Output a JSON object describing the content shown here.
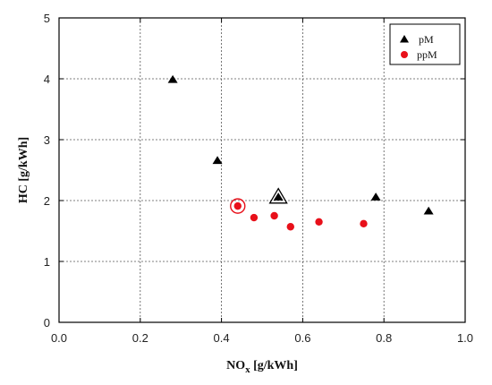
{
  "chart_data": {
    "type": "scatter",
    "xlabel": "NO",
    "xlabel_sub": "x",
    "xlabel_unit": " [g/kWh]",
    "ylabel": "HC [g/kWh]",
    "xlim": [
      0.0,
      1.0
    ],
    "ylim": [
      0,
      5
    ],
    "x_ticks": [
      "0.0",
      "0.2",
      "0.4",
      "0.6",
      "0.8",
      "1.0"
    ],
    "y_ticks": [
      "0",
      "1",
      "2",
      "3",
      "4",
      "5"
    ],
    "grid": "dotted",
    "legend_position": "top-right",
    "series": [
      {
        "name": "pM",
        "marker": "triangle",
        "color": "#000000",
        "points": [
          {
            "x": 0.28,
            "y": 3.98
          },
          {
            "x": 0.39,
            "y": 2.65
          },
          {
            "x": 0.54,
            "y": 2.05,
            "highlight": true
          },
          {
            "x": 0.78,
            "y": 2.05
          },
          {
            "x": 0.91,
            "y": 1.82
          }
        ]
      },
      {
        "name": "ppM",
        "marker": "circle",
        "color": "#e8101a",
        "points": [
          {
            "x": 0.44,
            "y": 1.91,
            "highlight": true
          },
          {
            "x": 0.48,
            "y": 1.72
          },
          {
            "x": 0.53,
            "y": 1.75
          },
          {
            "x": 0.57,
            "y": 1.57
          },
          {
            "x": 0.64,
            "y": 1.65
          },
          {
            "x": 0.75,
            "y": 1.62
          }
        ]
      }
    ]
  }
}
